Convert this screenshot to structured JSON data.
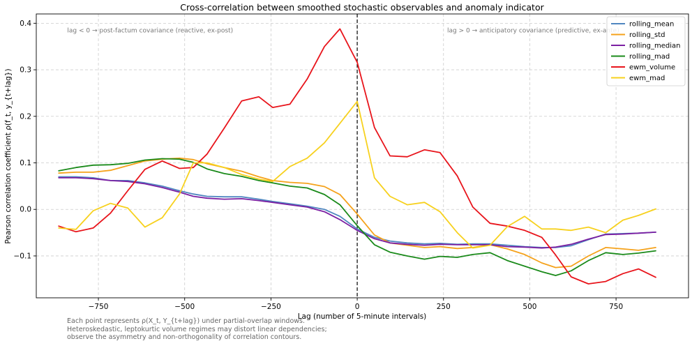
{
  "chart_data": {
    "type": "line",
    "title": "Cross-correlation between smoothed stochastic observables and anomaly indicator",
    "xlabel": "Lag (number of 5-minute intervals)",
    "ylabel": "Pearson correlation coefficient ρ(f_t, y_{t+lag})",
    "xlim": [
      -930,
      960
    ],
    "ylim": [
      -0.19,
      0.42
    ],
    "xticks": [
      -750,
      -500,
      -250,
      0,
      250,
      500,
      750
    ],
    "xtick_labels": [
      "−750",
      "−500",
      "−250",
      "0",
      "250",
      "500",
      "750"
    ],
    "yticks": [
      -0.1,
      0.0,
      0.1,
      0.2,
      0.3,
      0.4
    ],
    "ytick_labels": [
      "−0.1",
      "0.0",
      "0.1",
      "0.2",
      "0.3",
      "0.4"
    ],
    "grid": true,
    "legend_position": "top-right",
    "vline": {
      "x": 0,
      "style": "dashed",
      "color": "#000000"
    },
    "annotations": [
      {
        "text": "lag < 0 → post-factum covariance (reactive, ex-post)",
        "x": -600,
        "y": 0.38
      },
      {
        "text": "lag > 0 → anticipatory covariance (predictive, ex-ante)",
        "x": 510,
        "y": 0.38
      }
    ],
    "x": [
      -865,
      -815,
      -765,
      -715,
      -665,
      -615,
      -565,
      -515,
      -475,
      -435,
      -385,
      -335,
      -285,
      -245,
      -195,
      -145,
      -95,
      -50,
      0,
      50,
      95,
      145,
      195,
      240,
      290,
      335,
      385,
      435,
      485,
      535,
      575,
      620,
      670,
      720,
      770,
      815,
      865
    ],
    "series": [
      {
        "name": "rolling_mean",
        "color": "#4f86c0",
        "values": [
          0.07,
          0.07,
          0.068,
          0.062,
          0.062,
          0.057,
          0.05,
          0.04,
          0.033,
          0.028,
          0.027,
          0.027,
          0.022,
          0.017,
          0.012,
          0.007,
          0.0,
          -0.015,
          -0.042,
          -0.06,
          -0.068,
          -0.072,
          -0.074,
          -0.073,
          -0.075,
          -0.074,
          -0.074,
          -0.077,
          -0.08,
          -0.082,
          -0.082,
          -0.078,
          -0.065,
          -0.053,
          -0.052,
          -0.051,
          -0.049
        ]
      },
      {
        "name": "rolling_std",
        "color": "#f5a21b",
        "values": [
          0.078,
          0.08,
          0.08,
          0.084,
          0.094,
          0.104,
          0.108,
          0.11,
          0.107,
          0.098,
          0.09,
          0.082,
          0.07,
          0.062,
          0.058,
          0.056,
          0.049,
          0.032,
          -0.01,
          -0.055,
          -0.072,
          -0.077,
          -0.082,
          -0.08,
          -0.084,
          -0.082,
          -0.076,
          -0.085,
          -0.097,
          -0.115,
          -0.125,
          -0.122,
          -0.1,
          -0.082,
          -0.085,
          -0.088,
          -0.082
        ]
      },
      {
        "name": "rolling_median",
        "color": "#7b1fa2",
        "values": [
          0.068,
          0.068,
          0.066,
          0.062,
          0.06,
          0.055,
          0.047,
          0.037,
          0.028,
          0.024,
          0.022,
          0.023,
          0.019,
          0.015,
          0.01,
          0.005,
          -0.005,
          -0.022,
          -0.045,
          -0.063,
          -0.072,
          -0.075,
          -0.077,
          -0.075,
          -0.076,
          -0.076,
          -0.076,
          -0.08,
          -0.081,
          -0.083,
          -0.081,
          -0.075,
          -0.064,
          -0.054,
          -0.053,
          -0.051,
          -0.049
        ]
      },
      {
        "name": "rolling_mad",
        "color": "#1a8a1a",
        "values": [
          0.083,
          0.09,
          0.095,
          0.096,
          0.099,
          0.106,
          0.109,
          0.108,
          0.101,
          0.087,
          0.077,
          0.071,
          0.062,
          0.057,
          0.05,
          0.046,
          0.032,
          0.01,
          -0.035,
          -0.076,
          -0.092,
          -0.1,
          -0.107,
          -0.101,
          -0.103,
          -0.097,
          -0.093,
          -0.11,
          -0.122,
          -0.134,
          -0.142,
          -0.132,
          -0.11,
          -0.093,
          -0.097,
          -0.094,
          -0.089
        ]
      },
      {
        "name": "ewm_volume",
        "color": "#e8141b",
        "values": [
          -0.036,
          -0.048,
          -0.04,
          -0.008,
          0.04,
          0.086,
          0.104,
          0.088,
          0.09,
          0.119,
          0.175,
          0.233,
          0.242,
          0.219,
          0.226,
          0.28,
          0.35,
          0.388,
          0.316,
          0.176,
          0.115,
          0.113,
          0.128,
          0.122,
          0.072,
          0.005,
          -0.03,
          -0.036,
          -0.045,
          -0.06,
          -0.098,
          -0.145,
          -0.16,
          -0.155,
          -0.138,
          -0.128,
          -0.146
        ]
      },
      {
        "name": "ewm_mad",
        "color": "#f7d11e",
        "values": [
          -0.04,
          -0.043,
          -0.003,
          0.013,
          0.003,
          -0.038,
          -0.018,
          0.033,
          0.1,
          0.1,
          0.09,
          0.075,
          0.065,
          0.06,
          0.092,
          0.11,
          0.143,
          0.185,
          0.232,
          0.068,
          0.028,
          0.01,
          0.015,
          -0.005,
          -0.05,
          -0.083,
          -0.077,
          -0.037,
          -0.015,
          -0.042,
          -0.042,
          -0.045,
          -0.038,
          -0.05,
          -0.023,
          -0.013,
          0.001
        ]
      }
    ]
  },
  "footnote": {
    "line1": "Each point represents ρ(X_t, Y_{t+lag}) under partial-overlap windows.",
    "line2": "Heteroskedastic, leptokurtic volume regimes may distort linear dependencies;",
    "line3": "observe the asymmetry and non-orthogonality of correlation contours."
  }
}
